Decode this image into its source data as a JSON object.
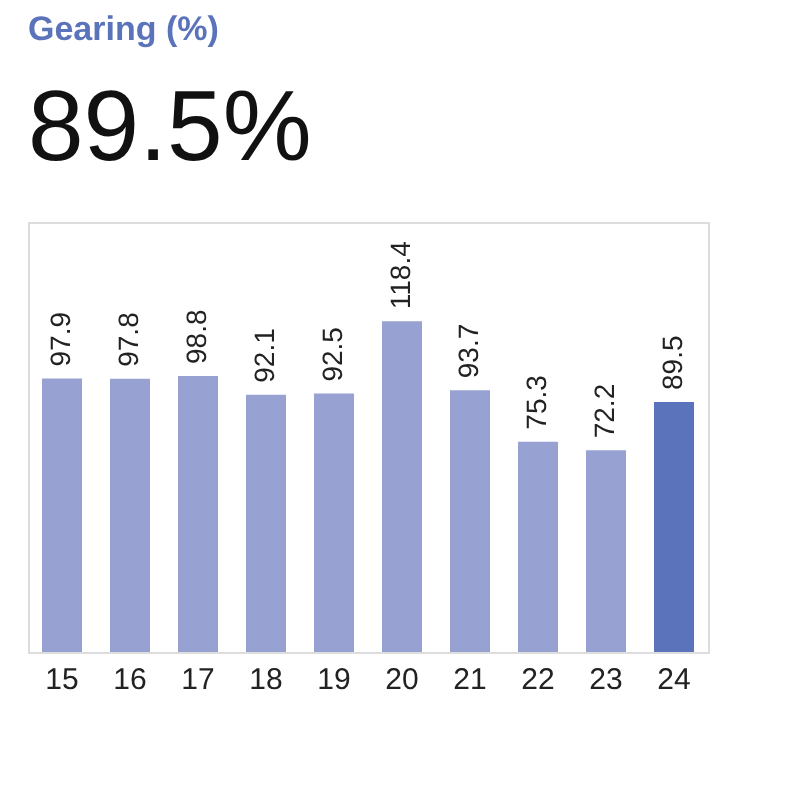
{
  "chart_data": {
    "type": "bar",
    "title": "Gearing (%)",
    "subtitle": "89.5%",
    "categories": [
      "15",
      "16",
      "17",
      "18",
      "19",
      "20",
      "21",
      "22",
      "23",
      "24"
    ],
    "values": [
      97.9,
      97.8,
      98.8,
      92.1,
      92.5,
      118.4,
      93.7,
      75.3,
      72.2,
      89.5
    ],
    "colors": [
      "#97a2d2",
      "#97a2d2",
      "#97a2d2",
      "#97a2d2",
      "#97a2d2",
      "#97a2d2",
      "#97a2d2",
      "#97a2d2",
      "#97a2d2",
      "#5b73ba"
    ],
    "data_labels": true
  }
}
